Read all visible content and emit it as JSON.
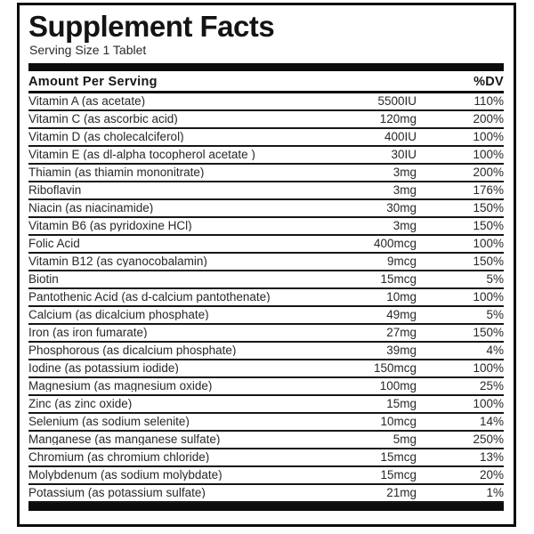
{
  "label": {
    "title": "Supplement Facts",
    "serving_size": "Serving Size 1 Tablet",
    "colors": {
      "background": "#ffffff",
      "text": "#282828",
      "rule": "#161616",
      "border": "#0c0c0c"
    },
    "table": {
      "header": {
        "amount_col": "Amount Per Serving",
        "dv_col": "%DV"
      },
      "rows": [
        {
          "name": "Vitamin A (as acetate)",
          "amount": "5500IU",
          "dv": "110%"
        },
        {
          "name": "Vitamin C (as ascorbic acid)",
          "amount": "120mg",
          "dv": "200%"
        },
        {
          "name": "Vitamin D (as cholecalciferol)",
          "amount": "400IU",
          "dv": "100%"
        },
        {
          "name": "Vitamin E (as dl-alpha tocopherol acetate )",
          "amount": "30IU",
          "dv": "100%"
        },
        {
          "name": "Thiamin (as thiamin mononitrate)",
          "amount": "3mg",
          "dv": "200%"
        },
        {
          "name": "Riboflavin",
          "amount": "3mg",
          "dv": "176%"
        },
        {
          "name": "Niacin (as niacinamide)",
          "amount": "30mg",
          "dv": "150%"
        },
        {
          "name": "Vitamin B6 (as pyridoxine HCl)",
          "amount": "3mg",
          "dv": "150%"
        },
        {
          "name": "Folic Acid",
          "amount": "400mcg",
          "dv": "100%"
        },
        {
          "name": "Vitamin B12 (as cyanocobalamin)",
          "amount": "9mcg",
          "dv": "150%"
        },
        {
          "name": "Biotin",
          "amount": "15mcg",
          "dv": "5%"
        },
        {
          "name": "Pantothenic Acid (as d-calcium pantothenate)",
          "amount": "10mg",
          "dv": "100%"
        },
        {
          "name": "Calcium (as dicalcium phosphate)",
          "amount": "49mg",
          "dv": "5%"
        },
        {
          "name": "Iron (as iron fumarate)",
          "amount": "27mg",
          "dv": "150%"
        },
        {
          "name": "Phosphorous (as dicalcium phosphate)",
          "amount": "39mg",
          "dv": "4%"
        },
        {
          "name": "Iodine (as potassium iodide)",
          "amount": "150mcg",
          "dv": "100%"
        },
        {
          "name": "Magnesium (as magnesium oxide)",
          "amount": "100mg",
          "dv": "25%"
        },
        {
          "name": "Zinc (as zinc oxide)",
          "amount": "15mg",
          "dv": "100%"
        },
        {
          "name": "Selenium (as sodium selenite)",
          "amount": "10mcg",
          "dv": "14%"
        },
        {
          "name": "Manganese (as manganese sulfate)",
          "amount": "5mg",
          "dv": "250%"
        },
        {
          "name": "Chromium (as chromium chloride)",
          "amount": "15mcg",
          "dv": "13%"
        },
        {
          "name": "Molybdenum (as sodium molybdate)",
          "amount": "15mcg",
          "dv": "20%"
        },
        {
          "name": "Potassium (as potassium sulfate)",
          "amount": "21mg",
          "dv": "1%"
        }
      ]
    }
  }
}
